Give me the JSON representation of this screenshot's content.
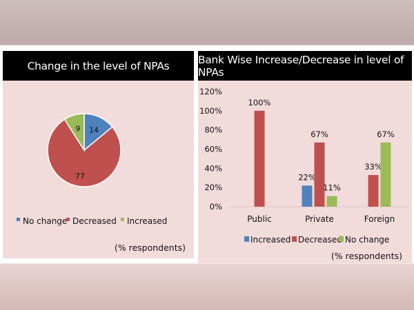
{
  "colors": {
    "blue": "#4f81bd",
    "red": "#c0504d",
    "green": "#9bbb59"
  },
  "chart_data": [
    {
      "type": "pie",
      "title": "Change in the level of NPAs",
      "slices": [
        {
          "label": "No change",
          "value": 14,
          "color": "#4f81bd"
        },
        {
          "label": "Decreased",
          "value": 77,
          "color": "#c0504d"
        },
        {
          "label": "Increased",
          "value": 9,
          "color": "#9bbb59"
        }
      ],
      "legend_position": "bottom",
      "note": "(% respondents)"
    },
    {
      "type": "bar",
      "title": "Bank Wise Increase/Decrease in level of NPAs",
      "categories": [
        "Public",
        "Private",
        "Foreign"
      ],
      "series": [
        {
          "name": "Increased",
          "color": "#4f81bd",
          "values": [
            null,
            22,
            null
          ]
        },
        {
          "name": "Decreased",
          "color": "#c0504d",
          "values": [
            100,
            67,
            33
          ]
        },
        {
          "name": "No change",
          "color": "#9bbb59",
          "values": [
            null,
            11,
            67
          ]
        }
      ],
      "yticks": [
        "0%",
        "20%",
        "40%",
        "60%",
        "80%",
        "100%",
        "120%"
      ],
      "ylim": [
        0,
        120
      ],
      "grid": false,
      "legend_position": "bottom",
      "note": "(% respondents)"
    }
  ]
}
